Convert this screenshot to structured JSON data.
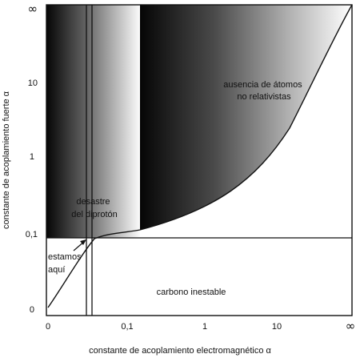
{
  "axes": {
    "x_label": "constante de acoplamiento electromagnético α",
    "y_label": "constante de acoplamiento fuerte α",
    "x_ticks": [
      "0",
      "0,1",
      "1",
      "10",
      "∞"
    ],
    "y_ticks": [
      "0",
      "0,1",
      "1",
      "10",
      "∞"
    ]
  },
  "regions": {
    "no_atoms_line1": "ausencia de átomos",
    "no_atoms_line2": "no relativistas",
    "diproton_line1": "desastre",
    "diproton_line2": "del diprotón",
    "here_line1": "estamos",
    "here_line2": "aquí",
    "carbon": "carbono inestable"
  },
  "colors": {
    "ink": "#111111",
    "shade_dark": "#050505",
    "shade_light": "#ffffff"
  }
}
